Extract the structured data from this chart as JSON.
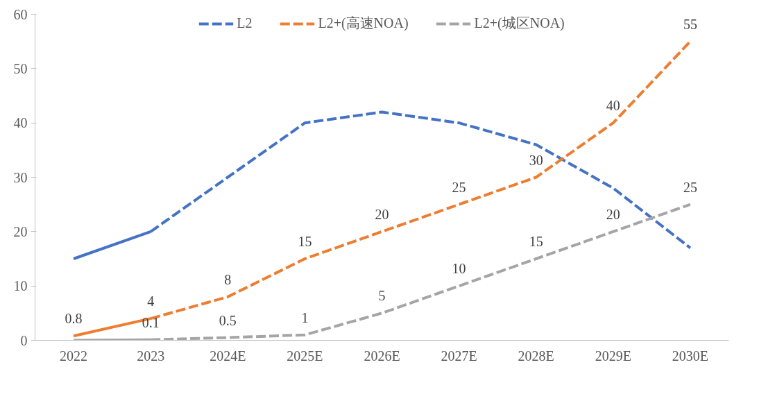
{
  "chart_data": {
    "type": "line",
    "categories": [
      "2022",
      "2023",
      "2024E",
      "2025E",
      "2026E",
      "2027E",
      "2028E",
      "2029E",
      "2030E"
    ],
    "ylim": [
      0,
      60
    ],
    "yticks": [
      0,
      10,
      20,
      30,
      40,
      50,
      60
    ],
    "grid": false,
    "legend": "top",
    "series": [
      {
        "color": "#4472c4",
        "line_style": "solid",
        "values": [
          15,
          20,
          null,
          null,
          null,
          null,
          null,
          null,
          null
        ]
      },
      {
        "name": "L2",
        "color": "#4472c4",
        "line_style": "dashed",
        "values": [
          null,
          20,
          30,
          40,
          42,
          40,
          36,
          28,
          17
        ]
      },
      {
        "color": "#ed7d31",
        "line_style": "solid",
        "values": [
          0.8,
          4,
          null,
          null,
          null,
          null,
          null,
          null,
          null
        ],
        "value_labels": [
          "0.8",
          "4",
          null,
          null,
          null,
          null,
          null,
          null,
          null
        ]
      },
      {
        "name": "L2+(高速NOA)",
        "color": "#ed7d31",
        "line_style": "dashed",
        "values": [
          null,
          4,
          8,
          15,
          20,
          25,
          30,
          40,
          55
        ],
        "value_labels": [
          null,
          null,
          "8",
          "15",
          "20",
          "25",
          "30",
          "40",
          "55"
        ]
      },
      {
        "color": "#a5a5a5",
        "line_style": "solid",
        "values": [
          0,
          0.1,
          null,
          null,
          null,
          null,
          null,
          null,
          null
        ],
        "value_labels": [
          null,
          "0.1",
          null,
          null,
          null,
          null,
          null,
          null,
          null
        ]
      },
      {
        "name": "L2+(城区NOA)",
        "color": "#a5a5a5",
        "line_style": "dashed",
        "values": [
          null,
          0.1,
          0.5,
          1,
          5,
          10,
          15,
          20,
          25
        ],
        "value_labels": [
          null,
          null,
          "0.5",
          "1",
          "5",
          "10",
          "15",
          "20",
          "25"
        ]
      }
    ]
  }
}
